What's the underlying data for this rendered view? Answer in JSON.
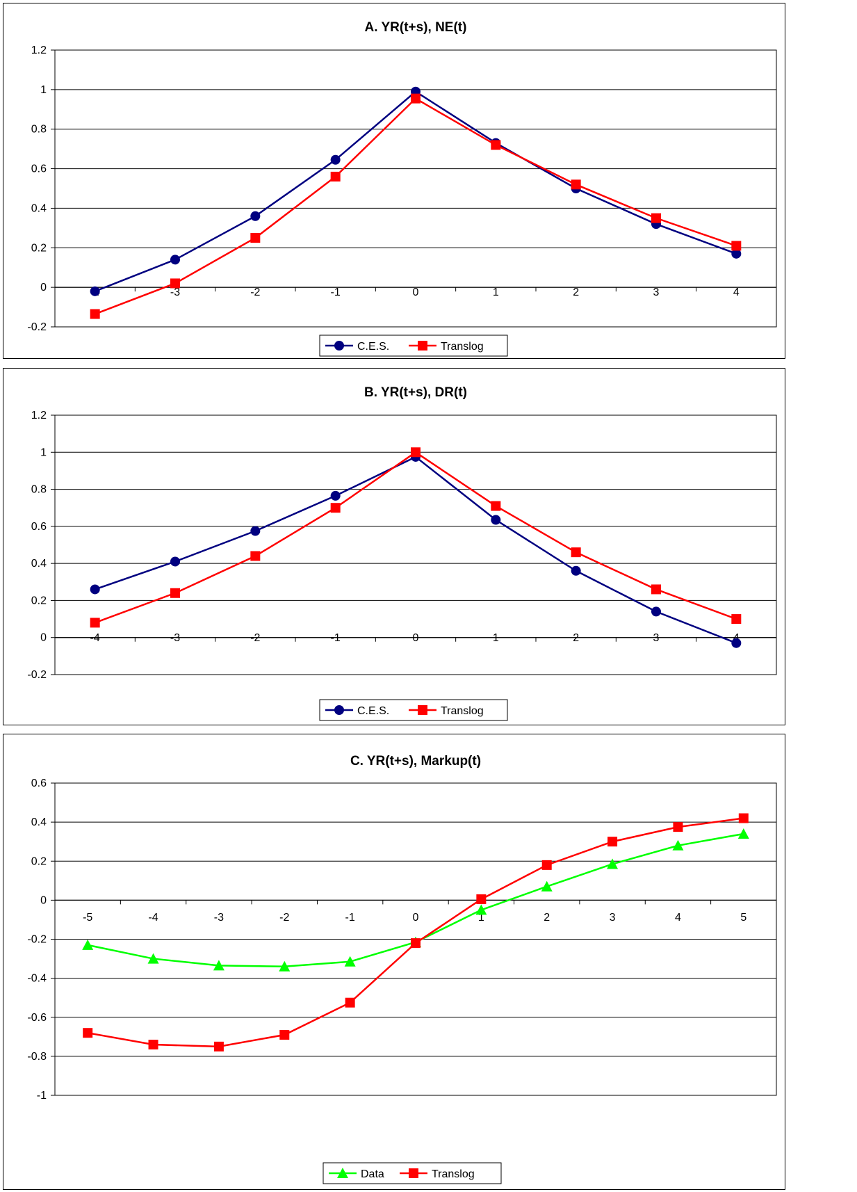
{
  "chart_data": [
    {
      "type": "line",
      "title": "A. YR(t+s), NE(t)",
      "xlabel": "",
      "ylabel": "",
      "categories": [
        "-4",
        "-3",
        "-2",
        "-1",
        "0",
        "1",
        "2",
        "3",
        "4"
      ],
      "ylim": [
        -0.2,
        1.2
      ],
      "yticks": [
        "1.2",
        "1",
        "0.8",
        "0.6",
        "0.4",
        "0.2",
        "0",
        "-0.2"
      ],
      "grid": true,
      "legend": "bottom",
      "series": [
        {
          "name": "C.E.S.",
          "color": "#000080",
          "marker": "circle",
          "values": [
            -0.02,
            0.14,
            0.36,
            0.645,
            0.99,
            0.73,
            0.5,
            0.32,
            0.17
          ]
        },
        {
          "name": "Translog",
          "color": "#FF0000",
          "marker": "square",
          "values": [
            -0.135,
            0.02,
            0.25,
            0.56,
            0.955,
            0.72,
            0.52,
            0.35,
            0.21
          ]
        }
      ]
    },
    {
      "type": "line",
      "title": "B. YR(t+s), DR(t)",
      "xlabel": "",
      "ylabel": "",
      "categories": [
        "-4",
        "-3",
        "-2",
        "-1",
        "0",
        "1",
        "2",
        "3",
        "4"
      ],
      "ylim": [
        -0.2,
        1.2
      ],
      "yticks": [
        "1.2",
        "1",
        "0.8",
        "0.6",
        "0.4",
        "0.2",
        "0",
        "-0.2"
      ],
      "grid": true,
      "legend": "bottom",
      "series": [
        {
          "name": "C.E.S.",
          "color": "#000080",
          "marker": "circle",
          "values": [
            0.26,
            0.41,
            0.575,
            0.765,
            0.975,
            0.635,
            0.36,
            0.14,
            -0.03
          ]
        },
        {
          "name": "Translog",
          "color": "#FF0000",
          "marker": "square",
          "values": [
            0.08,
            0.24,
            0.44,
            0.7,
            1.0,
            0.71,
            0.46,
            0.26,
            0.1
          ]
        }
      ]
    },
    {
      "type": "line",
      "title": "C. YR(t+s), Markup(t)",
      "xlabel": "",
      "ylabel": "",
      "categories": [
        "-5",
        "-4",
        "-3",
        "-2",
        "-1",
        "0",
        "1",
        "2",
        "3",
        "4",
        "5"
      ],
      "ylim": [
        -1,
        0.6
      ],
      "yticks": [
        "0.6",
        "0.4",
        "0.2",
        "0",
        "-0.2",
        "-0.4",
        "-0.6",
        "-0.8",
        "-1"
      ],
      "grid": true,
      "legend": "bottom",
      "series": [
        {
          "name": "Data",
          "color": "#00FF00",
          "marker": "triangle",
          "values": [
            -0.23,
            -0.3,
            -0.335,
            -0.34,
            -0.315,
            -0.215,
            -0.05,
            0.07,
            0.185,
            0.28,
            0.34
          ]
        },
        {
          "name": "Translog",
          "color": "#FF0000",
          "marker": "square",
          "values": [
            -0.68,
            -0.74,
            -0.75,
            -0.69,
            -0.525,
            -0.22,
            0.005,
            0.18,
            0.3,
            0.375,
            0.42
          ]
        }
      ]
    }
  ]
}
